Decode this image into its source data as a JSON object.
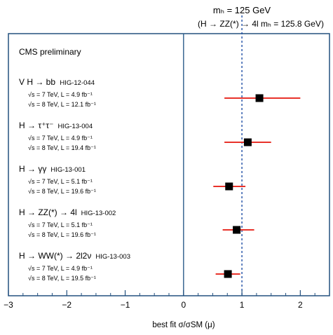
{
  "header": {
    "line1": "mₕ = 125 GeV",
    "line2": "(H → ZZ(*) → 4l mₕ = 125.8 GeV)"
  },
  "panel_label": "CMS preliminary",
  "channels": [
    {
      "title": "V H → bb",
      "ref": "HIG-12-044",
      "line1": "√s = 7 TeV, L = 4.9 fb⁻¹",
      "line2": "√s = 8 TeV, L = 12.1 fb⁻¹"
    },
    {
      "title": "H → τ⁺τ⁻",
      "ref": "HIG-13-004",
      "line1": "√s = 7 TeV, L = 4.9 fb⁻¹",
      "line2": "√s = 8 TeV, L = 19.4 fb⁻¹"
    },
    {
      "title": "H → γγ",
      "ref": "HIG-13-001",
      "line1": "√s = 7 TeV, L = 5.1 fb⁻¹",
      "line2": "√s = 8 TeV, L = 19.6 fb⁻¹"
    },
    {
      "title": "H → ZZ(*) → 4l",
      "ref": "HIG-13-002",
      "line1": "√s = 7 TeV, L = 5.1 fb⁻¹",
      "line2": "√s = 8 TeV, L = 19.6 fb⁻¹"
    },
    {
      "title": "H → WW(*) → 2l2ν",
      "ref": "HIG-13-003",
      "line1": "√s = 7 TeV, L = 4.9 fb⁻¹",
      "line2": "√s = 8 TeV, L = 19.5 fb⁻¹"
    }
  ],
  "chart_data": {
    "type": "scatter",
    "xlabel": "best fit σ/σSM (μ)",
    "xlim": [
      -3,
      2.5
    ],
    "xticks": [
      "−3",
      "−2",
      "−1",
      "0",
      "1",
      "2"
    ],
    "xtick_values": [
      -3,
      -2,
      -1,
      0,
      1,
      2
    ],
    "reference_lines": [
      {
        "x": 0,
        "style": "solid"
      },
      {
        "x": 1,
        "style": "dashed"
      }
    ],
    "points": [
      {
        "channel": "VH → bb",
        "mu": 1.3,
        "err_low": 0.6,
        "err_high": 0.7
      },
      {
        "channel": "H → ττ",
        "mu": 1.1,
        "err_low": 0.4,
        "err_high": 0.4
      },
      {
        "channel": "H → γγ",
        "mu": 0.78,
        "err_low": 0.27,
        "err_high": 0.28
      },
      {
        "channel": "H → ZZ → 4l",
        "mu": 0.91,
        "err_low": 0.24,
        "err_high": 0.3
      },
      {
        "channel": "H → WW → 2l2ν",
        "mu": 0.76,
        "err_low": 0.21,
        "err_high": 0.21
      }
    ],
    "colors": {
      "point": "#000000",
      "error_bar": "#e8322a",
      "zero_line": "#2b5c8a",
      "sm_line": "#1f4ea6",
      "frame": "#23507f"
    }
  }
}
